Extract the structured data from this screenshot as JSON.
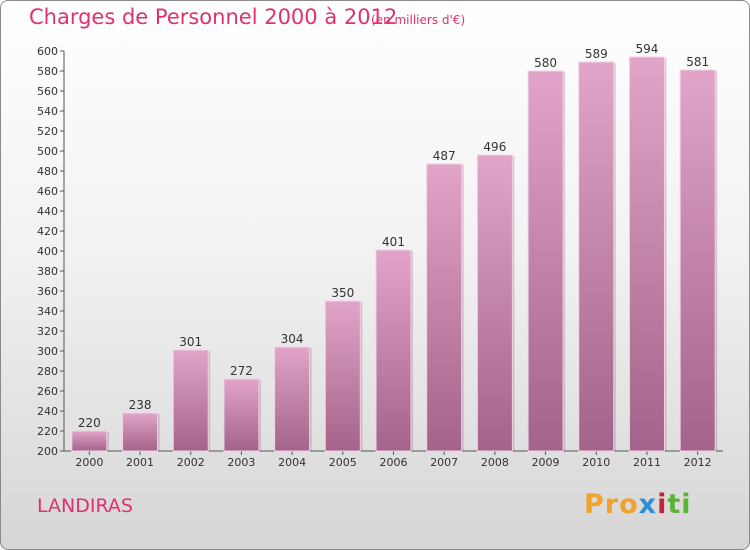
{
  "header": {
    "title": "Charges de Personnel 2000 à 2012",
    "subtitle": "(en milliers d'€)"
  },
  "footer": {
    "commune": "LANDIRAS",
    "logo_parts": [
      "Pro",
      "x",
      "i",
      "ti"
    ]
  },
  "colors": {
    "accent": "#e0306f",
    "bar_top": "#e2a4c8",
    "bar_bottom": "#a4638a"
  },
  "chart_data": {
    "type": "bar",
    "title": "Charges de Personnel 2000 à 2012",
    "subtitle": "(en milliers d'€)",
    "categories": [
      "2000",
      "2001",
      "2002",
      "2003",
      "2004",
      "2005",
      "2006",
      "2007",
      "2008",
      "2009",
      "2010",
      "2011",
      "2012"
    ],
    "values": [
      220,
      238,
      301,
      272,
      304,
      350,
      401,
      487,
      496,
      580,
      589,
      594,
      581
    ],
    "ylim": [
      200,
      600
    ],
    "ytick_step": 20,
    "grid": false,
    "legend": "none"
  }
}
